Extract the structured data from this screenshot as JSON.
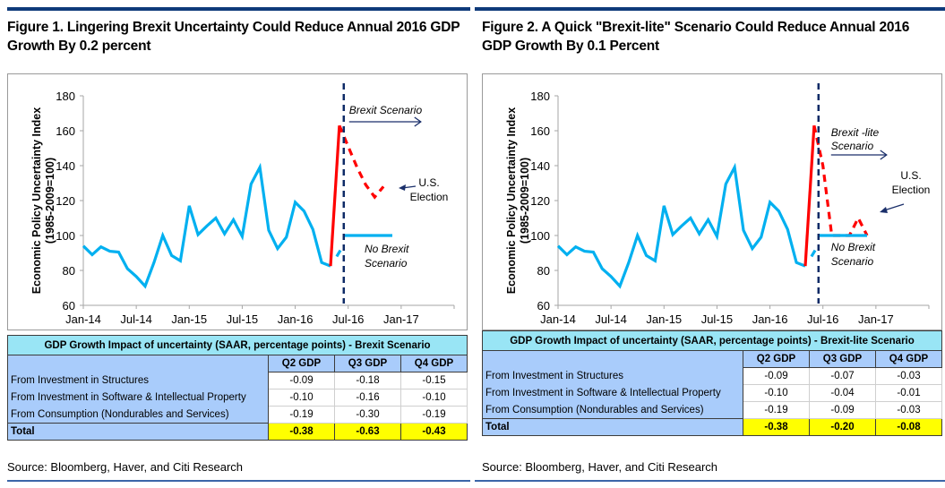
{
  "colors": {
    "series_history": "#00b0f0",
    "series_brexit": "#ff0000",
    "vline": "#0e2a66",
    "arrow": "#1a2f6a",
    "table_header": "#99e5f5",
    "table_label": "#a9ccfb",
    "table_total": "#ffff00"
  },
  "figures": [
    {
      "title": "Figure 1. Lingering Brexit Uncertainty Could Reduce Annual 2016 GDP Growth By 0.2 percent",
      "annotations": {
        "scenario": [
          "Brexit Scenario"
        ],
        "election": [
          "U.S.",
          "Election"
        ],
        "no_brexit": [
          "No Brexit",
          "Scenario"
        ]
      },
      "table": {
        "header": "GDP Growth Impact of uncertainty (SAAR, percentage points) - Brexit Scenario",
        "columns": [
          "Q2 GDP",
          "Q3 GDP",
          "Q4 GDP"
        ],
        "rows": [
          {
            "label": "From Investment in Structures",
            "values": [
              "-0.09",
              "-0.18",
              "-0.15"
            ]
          },
          {
            "label": "From Investment in Software & Intellectual Property",
            "values": [
              "-0.10",
              "-0.16",
              "-0.10"
            ]
          },
          {
            "label": "From Consumption (Nondurables and Services)",
            "values": [
              "-0.19",
              "-0.30",
              "-0.19"
            ]
          }
        ],
        "total": {
          "label": "Total",
          "values": [
            "-0.38",
            "-0.63",
            "-0.43"
          ]
        }
      },
      "source": "Source: Bloomberg, Haver, and Citi Research"
    },
    {
      "title": "Figure 2. A Quick \"Brexit-lite\" Scenario Could Reduce Annual 2016 GDP Growth By 0.1 Percent",
      "annotations": {
        "scenario": [
          "Brexit -lite",
          "Scenario"
        ],
        "election": [
          "U.S.",
          "Election"
        ],
        "no_brexit": [
          "No Brexit",
          "Scenario"
        ]
      },
      "table": {
        "header": "GDP Growth Impact of uncertainty (SAAR, percentage points) - Brexit-lite Scenario",
        "columns": [
          "Q2 GDP",
          "Q3 GDP",
          "Q4 GDP"
        ],
        "rows": [
          {
            "label": "From Investment in Structures",
            "values": [
              "-0.09",
              "-0.07",
              "-0.03"
            ]
          },
          {
            "label": "From Investment in Software & Intellectual Property",
            "values": [
              "-0.10",
              "-0.04",
              "-0.01"
            ]
          },
          {
            "label": "From Consumption (Nondurables and Services)",
            "values": [
              "-0.19",
              "-0.09",
              "-0.03"
            ]
          }
        ],
        "total": {
          "label": "Total",
          "values": [
            "-0.38",
            "-0.20",
            "-0.08"
          ]
        }
      },
      "source": "Source: Bloomberg, Haver, and Citi Research"
    }
  ],
  "chart_data": [
    {
      "type": "line",
      "title": "Figure 1. Lingering Brexit Uncertainty Could Reduce Annual 2016 GDP Growth By 0.2 percent",
      "xlabel": "",
      "ylabel": "Economic Policy Uncertainty Index (1985-2009=100)",
      "ylim": [
        60,
        180
      ],
      "yticks": [
        60,
        80,
        100,
        120,
        140,
        160,
        180
      ],
      "xticks": [
        "Jan-14",
        "Jul-14",
        "Jan-15",
        "Jul-15",
        "Jan-16",
        "Jul-16",
        "Jan-17"
      ],
      "x_range_months": [
        0,
        42
      ],
      "grid": false,
      "vline_month": 29.5,
      "series": [
        {
          "name": "Economic Policy Uncertainty Index",
          "style": "solid",
          "color": "#00b0f0",
          "x": [
            0,
            1,
            2,
            3,
            4,
            5,
            6,
            7,
            8,
            9,
            10,
            11,
            12,
            13,
            14,
            15,
            16,
            17,
            18,
            19,
            20,
            21,
            22,
            23,
            24,
            25,
            26,
            27,
            28
          ],
          "y": [
            94,
            89,
            93.5,
            91,
            90.5,
            81,
            76.5,
            71,
            84.5,
            100,
            88.5,
            85.5,
            117,
            100.5,
            105.5,
            110,
            101,
            109,
            99.5,
            129.5,
            139,
            103,
            92.5,
            99,
            119,
            114,
            103.5,
            84.5,
            82.5
          ]
        },
        {
          "name": "Brexit Scenario (jump)",
          "style": "solid",
          "color": "#ff0000",
          "x": [
            28,
            29
          ],
          "y": [
            82.5,
            163
          ]
        },
        {
          "name": "Brexit Scenario (projection)",
          "style": "dashed",
          "color": "#ff0000",
          "x": [
            29,
            30,
            31,
            32,
            33,
            34
          ],
          "y": [
            163,
            151,
            139,
            129,
            122,
            128
          ]
        },
        {
          "name": "No Brexit Scenario (bridge)",
          "style": "dashed",
          "color": "#00b0f0",
          "x": [
            28.7,
            29.3
          ],
          "y": [
            88,
            93
          ]
        },
        {
          "name": "No Brexit Scenario",
          "style": "solid",
          "color": "#00b0f0",
          "x": [
            29.5,
            35
          ],
          "y": [
            100,
            100
          ]
        }
      ],
      "annotations": [
        "Brexit Scenario",
        "U.S. Election",
        "No Brexit Scenario"
      ]
    },
    {
      "type": "line",
      "title": "Figure 2. A Quick \"Brexit-lite\" Scenario Could Reduce Annual 2016 GDP Growth By 0.1 Percent",
      "xlabel": "",
      "ylabel": "Economic Policy Uncertainty Index (1985-2009=100)",
      "ylim": [
        60,
        180
      ],
      "yticks": [
        60,
        80,
        100,
        120,
        140,
        160,
        180
      ],
      "xticks": [
        "Jan-14",
        "Jul-14",
        "Jan-15",
        "Jul-15",
        "Jan-16",
        "Jul-16",
        "Jan-17"
      ],
      "x_range_months": [
        0,
        42
      ],
      "grid": false,
      "vline_month": 29.5,
      "series": [
        {
          "name": "Economic Policy Uncertainty Index",
          "style": "solid",
          "color": "#00b0f0",
          "x": [
            0,
            1,
            2,
            3,
            4,
            5,
            6,
            7,
            8,
            9,
            10,
            11,
            12,
            13,
            14,
            15,
            16,
            17,
            18,
            19,
            20,
            21,
            22,
            23,
            24,
            25,
            26,
            27,
            28
          ],
          "y": [
            94,
            89,
            93.5,
            91,
            90.5,
            81,
            76.5,
            71,
            84.5,
            100,
            88.5,
            85.5,
            117,
            100.5,
            105.5,
            110,
            101,
            109,
            99.5,
            129.5,
            139,
            103,
            92.5,
            99,
            119,
            114,
            103.5,
            84.5,
            82.5
          ]
        },
        {
          "name": "Brexit-lite Scenario (jump)",
          "style": "solid",
          "color": "#ff0000",
          "x": [
            28,
            29
          ],
          "y": [
            82.5,
            163
          ]
        },
        {
          "name": "Brexit-lite Scenario (projection)",
          "style": "dashed",
          "color": "#ff0000",
          "x": [
            29,
            30,
            31,
            32,
            33,
            34,
            35
          ],
          "y": [
            163,
            140,
            100,
            100,
            100,
            110,
            100
          ]
        },
        {
          "name": "No Brexit Scenario (bridge)",
          "style": "dashed",
          "color": "#00b0f0",
          "x": [
            28.7,
            29.3
          ],
          "y": [
            88,
            93
          ]
        },
        {
          "name": "No Brexit Scenario",
          "style": "solid",
          "color": "#00b0f0",
          "x": [
            29.5,
            35
          ],
          "y": [
            100,
            100
          ]
        }
      ],
      "annotations": [
        "Brexit -lite Scenario",
        "U.S. Election",
        "No Brexit Scenario"
      ]
    }
  ]
}
